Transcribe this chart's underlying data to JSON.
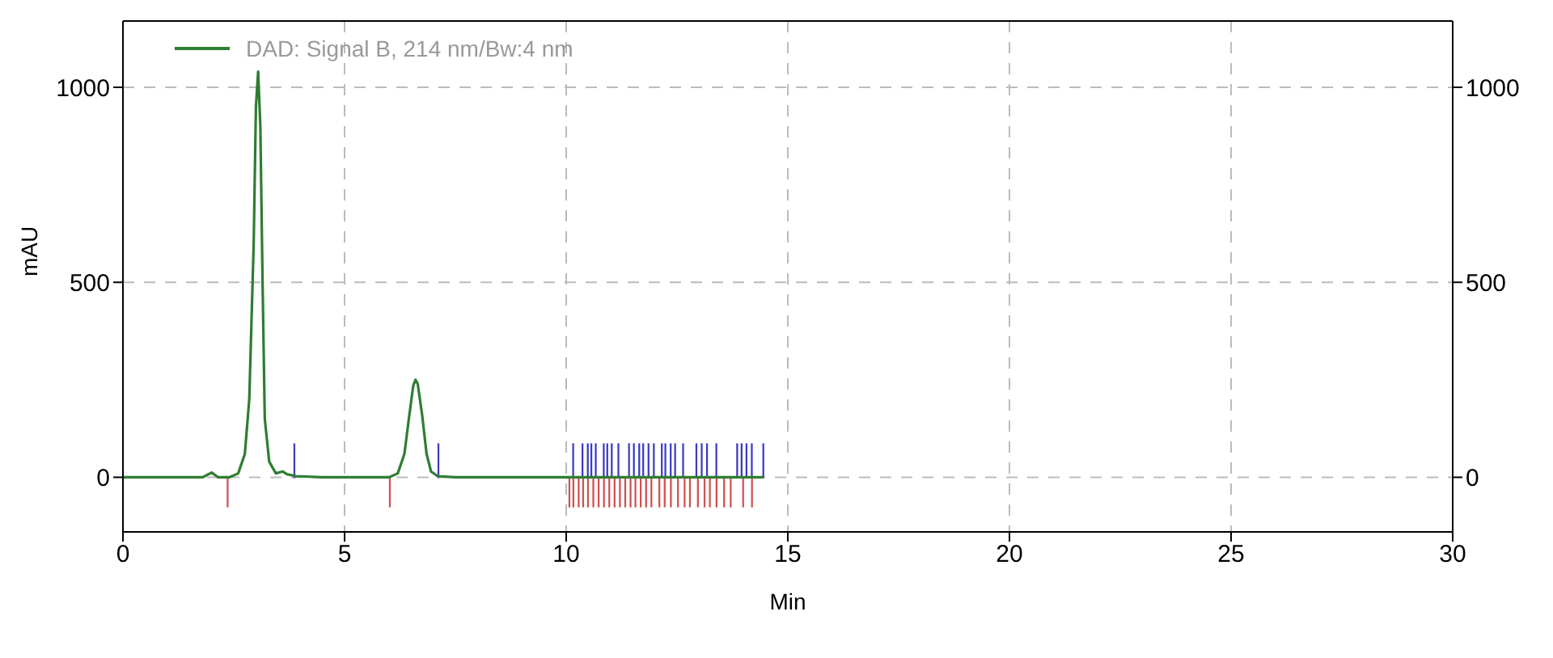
{
  "chart_data": {
    "type": "line",
    "xlabel": "Min",
    "ylabel": "mAU",
    "xlim": [
      0,
      30
    ],
    "xticks": [
      0,
      5,
      10,
      15,
      20,
      25,
      30
    ],
    "ylim": [
      -140,
      1170
    ],
    "yticks": [
      0,
      500,
      1000
    ],
    "y2lim": [
      -140,
      1170
    ],
    "y2ticks": [
      0,
      500,
      1000
    ],
    "grid": true,
    "legend": "top left",
    "marker": "none",
    "line_style": "solid",
    "series": [
      {
        "name": "DAD: Signal B, 214 nm/Bw:4 nm",
        "color": "#2e7d32",
        "x": [
          0,
          1.8,
          2.0,
          2.15,
          2.4,
          2.6,
          2.75,
          2.85,
          2.95,
          3.0,
          3.05,
          3.1,
          3.15,
          3.2,
          3.3,
          3.45,
          3.6,
          3.7,
          3.9,
          4.5,
          6.0,
          6.2,
          6.35,
          6.45,
          6.55,
          6.6,
          6.65,
          6.75,
          6.85,
          6.95,
          7.1,
          7.5,
          10,
          14.45
        ],
        "values": [
          0,
          0,
          12,
          0,
          0,
          10,
          60,
          200,
          600,
          950,
          1040,
          900,
          500,
          150,
          40,
          10,
          15,
          8,
          3,
          0,
          0,
          10,
          60,
          150,
          235,
          250,
          240,
          160,
          60,
          15,
          3,
          0,
          0,
          0
        ]
      },
      {
        "type": "bar",
        "color": "#3b3bc0",
        "x": [
          3.87,
          7.12,
          10.16,
          10.37,
          10.49,
          10.57,
          10.67,
          10.85,
          10.93,
          11.03,
          11.18,
          11.42,
          11.53,
          11.65,
          11.74,
          11.86,
          11.98,
          12.16,
          12.24,
          12.36,
          12.46,
          12.64,
          12.94,
          13.06,
          13.18,
          13.39,
          13.86,
          13.96,
          14.07,
          14.19,
          14.45
        ],
        "values": [
          85,
          85,
          85,
          85,
          85,
          85,
          85,
          85,
          85,
          85,
          85,
          85,
          85,
          85,
          85,
          85,
          85,
          85,
          85,
          85,
          85,
          85,
          85,
          85,
          85,
          85,
          85,
          85,
          85,
          85,
          85
        ]
      },
      {
        "type": "bar",
        "color": "#d05050",
        "x": [
          2.36,
          6.02,
          10.07,
          10.16,
          10.28,
          10.38,
          10.49,
          10.61,
          10.73,
          10.85,
          10.97,
          11.09,
          11.21,
          11.33,
          11.45,
          11.56,
          11.68,
          11.8,
          11.92,
          12.1,
          12.22,
          12.36,
          12.52,
          12.67,
          12.79,
          12.97,
          13.12,
          13.24,
          13.39,
          13.56,
          13.71,
          13.99,
          14.19
        ],
        "values": [
          -75,
          -75,
          -75,
          -75,
          -75,
          -75,
          -75,
          -75,
          -75,
          -75,
          -75,
          -75,
          -75,
          -75,
          -75,
          -75,
          -75,
          -75,
          -75,
          -75,
          -75,
          -75,
          -75,
          -75,
          -75,
          -75,
          -75,
          -75,
          -75,
          -75,
          -75,
          -75,
          -75
        ]
      }
    ]
  }
}
